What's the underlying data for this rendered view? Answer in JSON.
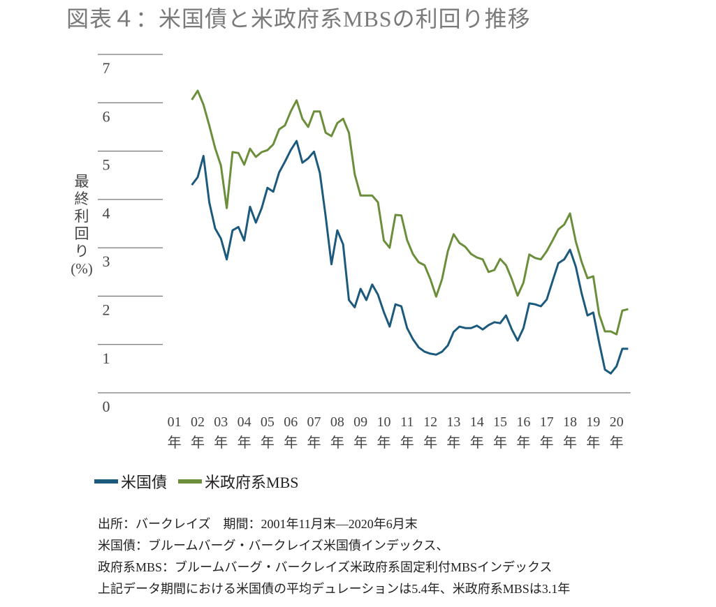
{
  "chart_data": {
    "type": "line",
    "title": "図表４：米国債と米政府系MBSの利回り推移",
    "y_label": "最終利回り(%)",
    "x": [
      2001.75,
      2002,
      2002.25,
      2002.5,
      2002.75,
      2003,
      2003.25,
      2003.5,
      2003.75,
      2004,
      2004.25,
      2004.5,
      2004.75,
      2005,
      2005.25,
      2005.5,
      2005.75,
      2006,
      2006.25,
      2006.5,
      2006.75,
      2007,
      2007.25,
      2007.5,
      2007.75,
      2008,
      2008.25,
      2008.5,
      2008.75,
      2009,
      2009.25,
      2009.5,
      2009.75,
      2010,
      2010.25,
      2010.5,
      2010.75,
      2011,
      2011.25,
      2011.5,
      2011.75,
      2012,
      2012.25,
      2012.5,
      2012.75,
      2013,
      2013.25,
      2013.5,
      2013.75,
      2014,
      2014.25,
      2014.5,
      2014.75,
      2015,
      2015.25,
      2015.5,
      2015.75,
      2016,
      2016.25,
      2016.5,
      2016.75,
      2017,
      2017.25,
      2017.5,
      2017.75,
      2018,
      2018.25,
      2018.5,
      2018.75,
      2019,
      2019.25,
      2019.5,
      2019.75,
      2020,
      2020.25,
      2020.5
    ],
    "series": [
      {
        "name": "米国債",
        "color": "#1c5a7d",
        "values": [
          4.3,
          4.46,
          4.9,
          3.94,
          3.4,
          3.19,
          2.76,
          3.36,
          3.43,
          3.15,
          3.85,
          3.52,
          3.82,
          4.24,
          4.16,
          4.56,
          4.78,
          5.02,
          5.21,
          4.76,
          4.85,
          4.99,
          4.55,
          3.65,
          2.66,
          3.36,
          3.07,
          1.92,
          1.77,
          2.15,
          1.92,
          2.24,
          2.03,
          1.67,
          1.37,
          1.83,
          1.79,
          1.34,
          1.11,
          0.94,
          0.85,
          0.81,
          0.79,
          0.85,
          0.98,
          1.26,
          1.37,
          1.34,
          1.34,
          1.39,
          1.31,
          1.4,
          1.46,
          1.44,
          1.6,
          1.31,
          1.08,
          1.34,
          1.85,
          1.83,
          1.79,
          1.93,
          2.31,
          2.68,
          2.76,
          2.96,
          2.61,
          2.06,
          1.6,
          1.66,
          1.05,
          0.48,
          0.4,
          0.55,
          0.91,
          0.91
        ]
      },
      {
        "name": "米政府系MBS",
        "color": "#6b8e3a",
        "values": [
          6.06,
          6.25,
          5.96,
          5.53,
          5.06,
          4.7,
          3.82,
          4.98,
          4.96,
          4.72,
          5.05,
          4.88,
          4.98,
          5.02,
          5.14,
          5.45,
          5.53,
          5.82,
          6.05,
          5.67,
          5.5,
          5.82,
          5.82,
          5.38,
          5.31,
          5.58,
          5.67,
          5.38,
          4.52,
          4.08,
          4.08,
          4.08,
          3.94,
          3.15,
          3.0,
          3.68,
          3.67,
          3.16,
          2.87,
          2.7,
          2.64,
          2.35,
          1.99,
          2.35,
          2.93,
          3.28,
          3.1,
          3.02,
          2.87,
          2.8,
          2.76,
          2.5,
          2.54,
          2.77,
          2.64,
          2.35,
          2.01,
          2.28,
          2.86,
          2.79,
          2.76,
          2.93,
          3.15,
          3.38,
          3.48,
          3.71,
          3.13,
          2.71,
          2.37,
          2.41,
          1.63,
          1.27,
          1.27,
          1.21,
          1.7,
          1.73
        ]
      }
    ],
    "xlim": [
      2000.5,
      2020.6
    ],
    "xticks": [
      {
        "value": 2001,
        "label": "01年"
      },
      {
        "value": 2002,
        "label": "02年"
      },
      {
        "value": 2003,
        "label": "03年"
      },
      {
        "value": 2004,
        "label": "04年"
      },
      {
        "value": 2005,
        "label": "05年"
      },
      {
        "value": 2006,
        "label": "06年"
      },
      {
        "value": 2007,
        "label": "07年"
      },
      {
        "value": 2008,
        "label": "08年"
      },
      {
        "value": 2009,
        "label": "09年"
      },
      {
        "value": 2010,
        "label": "10年"
      },
      {
        "value": 2011,
        "label": "11年"
      },
      {
        "value": 2012,
        "label": "12年"
      },
      {
        "value": 2013,
        "label": "13年"
      },
      {
        "value": 2014,
        "label": "14年"
      },
      {
        "value": 2015,
        "label": "15年"
      },
      {
        "value": 2016,
        "label": "16年"
      },
      {
        "value": 2017,
        "label": "17年"
      },
      {
        "value": 2018,
        "label": "18年"
      },
      {
        "value": 2019,
        "label": "19年"
      },
      {
        "value": 2020,
        "label": "20年"
      }
    ],
    "ylim": [
      0,
      7
    ],
    "yticks": [
      0,
      1,
      2,
      3,
      4,
      5,
      6,
      7
    ],
    "grid": true
  },
  "notes": [
    "出所：バークレイズ　期間：2001年11月末—2020年6月末",
    "米国債：ブルームバーグ・バークレイズ米国債インデックス、",
    "政府系MBS：ブルームバーグ・バークレイズ米政府系固定利付MBSインデックス",
    "上記データ期間における米国債の平均デュレーションは5.4年、米政府系MBSは3.1年"
  ]
}
